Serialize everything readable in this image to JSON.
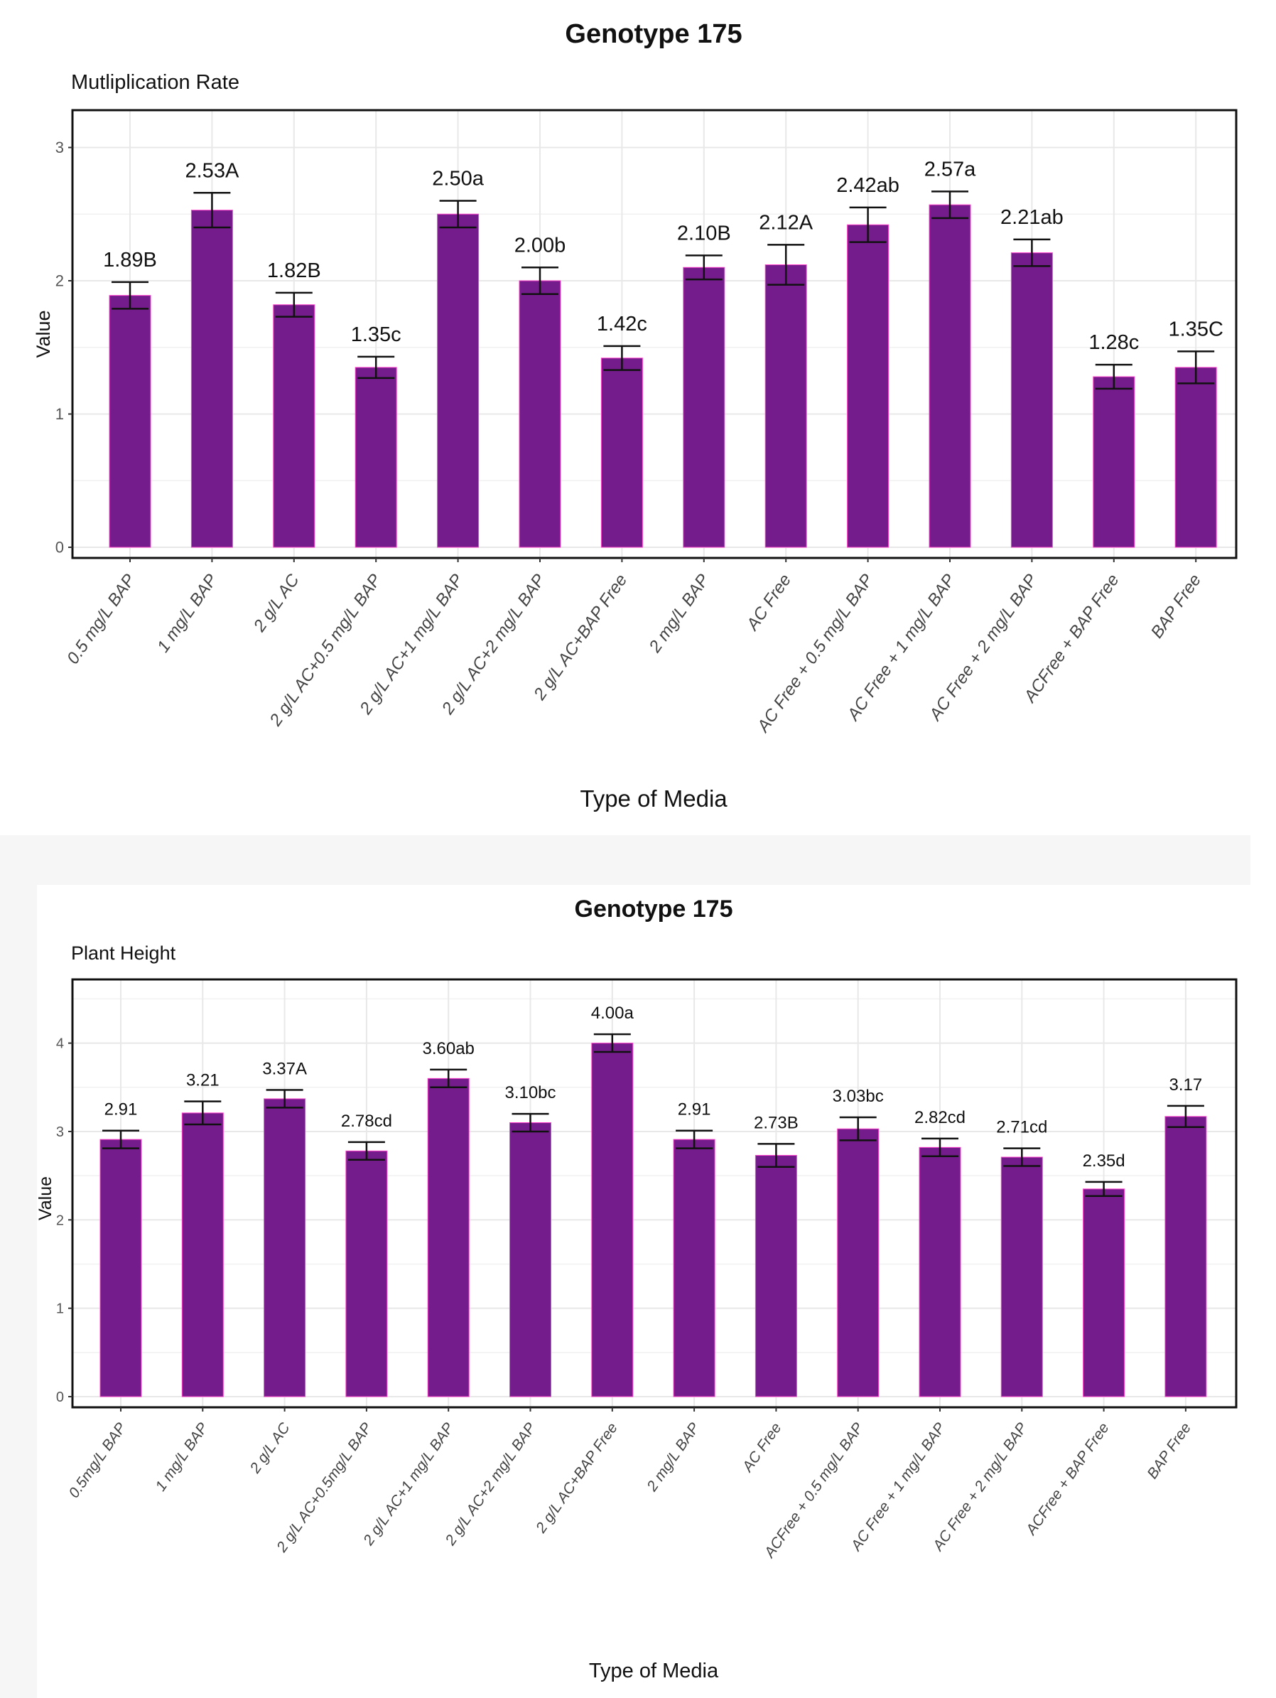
{
  "colors": {
    "bar": "#741c8c",
    "bar_outline": "#ff44cc",
    "grid": "#e8e8e8",
    "panel_border": "#111111"
  },
  "chart_data": [
    {
      "type": "bar",
      "title": "Genotype 175",
      "subtitle": "Mutliplication Rate",
      "xlabel": "Type of Media",
      "ylabel": "Value",
      "ylim": [
        0,
        3.2
      ],
      "yticks": [
        "0",
        "1",
        "2",
        "3"
      ],
      "ytick_values": [
        0,
        1,
        2,
        3
      ],
      "categories": [
        "0.5 mg/L BAP",
        "1 mg/L BAP",
        "2 g/L AC",
        "2 g/L AC+0.5 mg/L BAP",
        "2 g/L AC+1 mg/L BAP",
        "2 g/L AC+2 mg/L BAP",
        "2 g/L AC+BAP Free",
        "2 mg/L BAP",
        "AC Free",
        "AC Free + 0.5 mg/L BAP",
        "AC Free + 1 mg/L BAP",
        "AC Free + 2 mg/L BAP",
        "ACFree + BAP Free",
        "BAP Free"
      ],
      "values": [
        1.89,
        2.53,
        1.82,
        1.35,
        2.5,
        2.0,
        1.42,
        2.1,
        2.12,
        2.42,
        2.57,
        2.21,
        1.28,
        1.35
      ],
      "errors": [
        0.1,
        0.13,
        0.09,
        0.08,
        0.1,
        0.1,
        0.09,
        0.09,
        0.15,
        0.13,
        0.1,
        0.1,
        0.09,
        0.12
      ],
      "labels": [
        "1.89B",
        "2.53A",
        "1.82B",
        "1.35c",
        "2.50a",
        "2.00b",
        "1.42c",
        "2.10B",
        "2.12A",
        "2.42ab",
        "2.57a",
        "2.21ab",
        "1.28c",
        "1.35C"
      ]
    },
    {
      "type": "bar",
      "title": "Genotype 175",
      "subtitle": "Plant Height",
      "xlabel": "Type of Media",
      "ylabel": "Value",
      "ylim": [
        0,
        4.6
      ],
      "yticks": [
        "0",
        "1",
        "2",
        "3",
        "4"
      ],
      "ytick_values": [
        0,
        1,
        2,
        3,
        4
      ],
      "categories": [
        "0.5mg/L BAP",
        "1 mg/L BAP",
        "2 g/L AC",
        "2 g/L AC+0.5mg/L BAP",
        "2 g/L AC+1 mg/L BAP",
        "2 g/L AC+2 mg/L BAP",
        "2 g/L AC+BAP Free",
        "2 mg/L BAP",
        "AC Free",
        "ACFree + 0.5 mg/L BAP",
        "AC Free + 1 mg/L BAP",
        "AC Free + 2 mg/L BAP",
        "ACFree + BAP Free",
        "BAP Free"
      ],
      "values": [
        2.91,
        3.21,
        3.37,
        2.78,
        3.6,
        3.1,
        4.0,
        2.91,
        2.73,
        3.03,
        2.82,
        2.71,
        2.35,
        3.17
      ],
      "errors": [
        0.1,
        0.13,
        0.1,
        0.1,
        0.1,
        0.1,
        0.1,
        0.1,
        0.13,
        0.13,
        0.1,
        0.1,
        0.08,
        0.12
      ],
      "labels": [
        "2.91",
        "3.21",
        "3.37A",
        "2.78cd",
        "3.60ab",
        "3.10bc",
        "4.00a",
        "2.91",
        "2.73B",
        "3.03bc",
        "2.82cd",
        "2.71cd",
        "2.35d",
        "3.17"
      ]
    }
  ]
}
